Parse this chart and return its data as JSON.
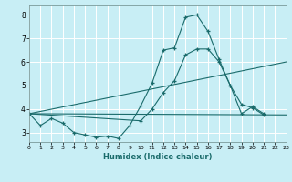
{
  "xlabel": "Humidex (Indice chaleur)",
  "bg_color": "#c8eef5",
  "line_color": "#1a6b6b",
  "grid_color": "#ffffff",
  "xlim": [
    0,
    23
  ],
  "ylim": [
    2.6,
    8.4
  ],
  "xticks": [
    0,
    1,
    2,
    3,
    4,
    5,
    6,
    7,
    8,
    9,
    10,
    11,
    12,
    13,
    14,
    15,
    16,
    17,
    18,
    19,
    20,
    21,
    22,
    23
  ],
  "yticks": [
    3,
    4,
    5,
    6,
    7,
    8
  ],
  "curve1_x": [
    0,
    1,
    2,
    3,
    4,
    5,
    6,
    7,
    8,
    9,
    10,
    11,
    12,
    13,
    14,
    15,
    16,
    17,
    18,
    19,
    20,
    21
  ],
  "curve1_y": [
    3.8,
    3.3,
    3.6,
    3.4,
    3.0,
    2.9,
    2.8,
    2.85,
    2.75,
    3.3,
    4.15,
    5.1,
    6.5,
    6.6,
    7.9,
    8.0,
    7.3,
    6.1,
    5.0,
    3.8,
    4.1,
    3.8
  ],
  "curve2_x": [
    0,
    10,
    11,
    12,
    13,
    14,
    15,
    16,
    17,
    18,
    19,
    20,
    21
  ],
  "curve2_y": [
    3.8,
    3.5,
    4.0,
    4.7,
    5.2,
    6.3,
    6.55,
    6.55,
    6.0,
    5.0,
    4.2,
    4.05,
    3.75
  ],
  "line3_x": [
    0,
    23
  ],
  "line3_y": [
    3.8,
    3.75
  ],
  "line4_x": [
    0,
    23
  ],
  "line4_y": [
    3.8,
    6.0
  ]
}
